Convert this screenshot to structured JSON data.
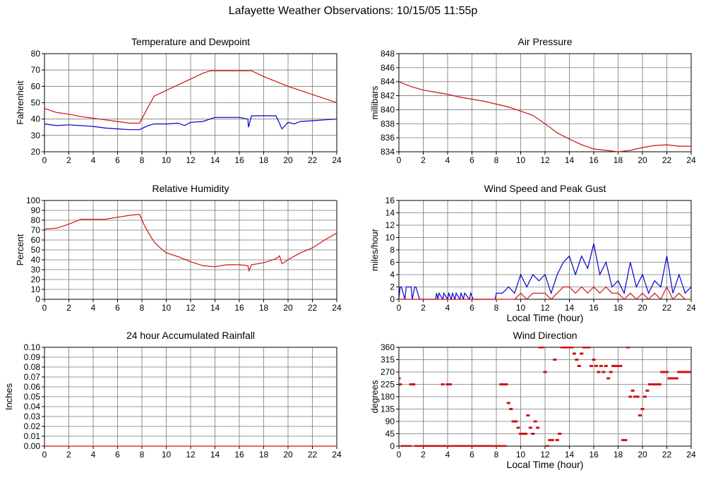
{
  "page": {
    "title": "Lafayette Weather Observations: 10/15/05 11:55p"
  },
  "colors": {
    "red": "#d01010",
    "blue": "#0000c8",
    "grid": "#000000",
    "axis": "#000000"
  },
  "chart_data": [
    {
      "id": "temp",
      "type": "line",
      "title": "Temperature and Dewpoint",
      "xlabel": "",
      "ylabel": "Fahrenheit",
      "xlim": [
        0,
        24
      ],
      "ylim": [
        20,
        80
      ],
      "xticks": [
        0,
        2,
        4,
        6,
        8,
        10,
        12,
        14,
        16,
        18,
        20,
        22,
        24
      ],
      "yticks": [
        20,
        30,
        40,
        50,
        60,
        70,
        80
      ],
      "grid": true,
      "series": [
        {
          "color": "#d01010",
          "x": [
            0,
            1,
            2,
            3,
            4,
            5,
            6,
            7,
            7.8,
            8.2,
            9,
            10,
            11,
            12,
            13,
            13.6,
            14,
            15,
            16,
            17,
            18,
            19,
            20,
            21,
            22,
            23,
            24
          ],
          "values": [
            46.5,
            44,
            43,
            41.5,
            40.5,
            39.5,
            38.5,
            37.5,
            37.5,
            43,
            54,
            57.5,
            61,
            64.5,
            68,
            69.5,
            69.5,
            69.5,
            69.5,
            69.5,
            66,
            63,
            60,
            57.5,
            55,
            52.5,
            50
          ]
        },
        {
          "color": "#0000c8",
          "x": [
            0,
            1,
            2,
            3,
            4,
            5,
            6,
            7,
            7.8,
            8.5,
            9,
            10,
            11,
            11.5,
            12,
            13,
            14,
            15,
            16,
            16.7,
            16.75,
            17,
            18,
            19,
            19.2,
            19.5,
            20,
            20.5,
            21,
            22,
            23,
            24
          ],
          "values": [
            37,
            36,
            36.5,
            36,
            35.5,
            34.5,
            34,
            33.5,
            33.5,
            36,
            37,
            37,
            37.5,
            36,
            38,
            38.5,
            41,
            41,
            41,
            40,
            35,
            42,
            42,
            42,
            39,
            34,
            38,
            37,
            38.5,
            39,
            39.5,
            40
          ]
        }
      ]
    },
    {
      "id": "pressure",
      "type": "line",
      "title": "Air Pressure",
      "xlabel": "",
      "ylabel": "millibars",
      "xlim": [
        0,
        24
      ],
      "ylim": [
        834,
        848
      ],
      "xticks": [
        0,
        2,
        4,
        6,
        8,
        10,
        12,
        14,
        16,
        18,
        20,
        22,
        24
      ],
      "yticks": [
        834,
        836,
        838,
        840,
        842,
        844,
        846,
        848
      ],
      "grid": true,
      "series": [
        {
          "color": "#d01010",
          "x": [
            0,
            1,
            2,
            3,
            4,
            5,
            6,
            7,
            8,
            9,
            10,
            11,
            12,
            13,
            14,
            15,
            16,
            17,
            18,
            19,
            20,
            21,
            22,
            23,
            24
          ],
          "values": [
            844,
            843.3,
            842.8,
            842.5,
            842.2,
            841.8,
            841.5,
            841.2,
            840.8,
            840.4,
            839.8,
            839.2,
            838,
            836.7,
            835.8,
            835,
            834.4,
            834.2,
            834,
            834.2,
            834.6,
            834.9,
            835,
            834.8,
            834.8
          ]
        }
      ]
    },
    {
      "id": "humidity",
      "type": "line",
      "title": "Relative Humidity",
      "xlabel": "",
      "ylabel": "Percent",
      "xlim": [
        0,
        24
      ],
      "ylim": [
        0,
        100
      ],
      "xticks": [
        0,
        2,
        4,
        6,
        8,
        10,
        12,
        14,
        16,
        18,
        20,
        22,
        24
      ],
      "yticks": [
        0,
        10,
        20,
        30,
        40,
        50,
        60,
        70,
        80,
        90,
        100
      ],
      "grid": true,
      "series": [
        {
          "color": "#d01010",
          "x": [
            0,
            1,
            2,
            3,
            4,
            5,
            6,
            7,
            7.8,
            8.2,
            8.6,
            9,
            9.5,
            10,
            11,
            12,
            13,
            14,
            15,
            16,
            16.7,
            16.8,
            17,
            18,
            19,
            19.3,
            19.5,
            20,
            21,
            22,
            23,
            24
          ],
          "values": [
            71,
            72,
            76,
            81,
            81,
            81,
            83,
            85,
            86,
            75,
            66,
            58,
            52,
            47,
            43,
            38,
            34,
            33,
            35,
            35,
            34,
            29,
            35,
            37,
            41,
            44,
            36,
            40,
            47,
            52,
            60,
            67
          ]
        }
      ]
    },
    {
      "id": "wind",
      "type": "line",
      "title": "Wind Speed and Peak Gust",
      "xlabel": "Local Time (hour)",
      "ylabel": "miles/hour",
      "xlim": [
        0,
        24
      ],
      "ylim": [
        0,
        16
      ],
      "xticks": [
        0,
        2,
        4,
        6,
        8,
        10,
        12,
        14,
        16,
        18,
        20,
        22,
        24
      ],
      "yticks": [
        0,
        2,
        4,
        6,
        8,
        10,
        12,
        14,
        16
      ],
      "grid": true,
      "series": [
        {
          "color": "#0000c8",
          "x": [
            0,
            0.1,
            0.2,
            0.5,
            0.6,
            1.0,
            1.1,
            1.3,
            1.4,
            1.7,
            1.8,
            3,
            3.1,
            3.2,
            3.3,
            3.6,
            3.7,
            4,
            4.1,
            4.3,
            4.4,
            4.6,
            4.7,
            5,
            5.1,
            5.3,
            5.4,
            5.8,
            5.9,
            6.1,
            6.2,
            7.9,
            8,
            8.5,
            9,
            9.5,
            10,
            10.5,
            11,
            11.5,
            12,
            12.5,
            13,
            13.5,
            14,
            14.5,
            15,
            15.5,
            16,
            16.5,
            17,
            17.5,
            18,
            18.5,
            19,
            19.5,
            20,
            20.5,
            21,
            21.5,
            22,
            22.5,
            23,
            23.5,
            24
          ],
          "values": [
            0,
            2,
            2,
            0,
            2,
            2,
            0,
            2,
            2,
            0,
            0,
            0,
            1,
            0,
            1,
            0,
            1,
            0,
            1,
            0,
            1,
            0,
            1,
            0,
            1,
            0,
            1,
            0,
            1,
            0,
            0,
            0,
            1,
            1,
            2,
            1,
            4,
            2,
            4,
            3,
            4,
            1,
            4,
            6,
            7,
            4,
            7,
            5,
            9,
            4,
            6,
            2,
            3,
            1,
            6,
            2,
            4,
            1,
            3,
            2,
            7,
            1,
            4,
            1,
            2
          ]
        },
        {
          "color": "#d01010",
          "x": [
            0,
            9.5,
            10,
            10.5,
            11,
            11.5,
            12,
            12.5,
            13,
            13.5,
            14,
            14.5,
            15,
            15.5,
            16,
            16.5,
            17,
            17.5,
            18,
            18.5,
            19,
            19.5,
            20,
            20.5,
            21,
            21.5,
            22,
            22.5,
            23,
            23.5,
            24
          ],
          "values": [
            0,
            0,
            1,
            0,
            1,
            1,
            1,
            0,
            1,
            2,
            2,
            1,
            2,
            1,
            2,
            1,
            2,
            1,
            1,
            0,
            1,
            0,
            1,
            0,
            1,
            0,
            2,
            0,
            1,
            0,
            0
          ]
        }
      ]
    },
    {
      "id": "rain",
      "type": "line",
      "title": "24 hour Accumulated Rainfall",
      "xlabel": "",
      "ylabel": "Inches",
      "xlim": [
        0,
        24
      ],
      "ylim": [
        0,
        0.1
      ],
      "xticks": [
        0,
        2,
        4,
        6,
        8,
        10,
        12,
        14,
        16,
        18,
        20,
        22,
        24
      ],
      "yticks": [
        0,
        0.01,
        0.02,
        0.03,
        0.04,
        0.05,
        0.06,
        0.07,
        0.08,
        0.09,
        0.1
      ],
      "ytick_labels": [
        "0.00",
        "0.01",
        "0.02",
        "0.03",
        "0.04",
        "0.05",
        "0.06",
        "0.07",
        "0.08",
        "0.09",
        "0.10"
      ],
      "grid": true,
      "series": [
        {
          "color": "#d01010",
          "x": [
            0,
            24
          ],
          "values": [
            0,
            0
          ]
        }
      ]
    },
    {
      "id": "direction",
      "type": "scatter",
      "title": "Wind Direction",
      "xlabel": "Local Time (hour)",
      "ylabel": "degrees",
      "xlim": [
        0,
        24
      ],
      "ylim": [
        0,
        360
      ],
      "xticks": [
        0,
        2,
        4,
        6,
        8,
        10,
        12,
        14,
        16,
        18,
        20,
        22,
        24
      ],
      "yticks": [
        0,
        45,
        90,
        135,
        180,
        225,
        270,
        315,
        360
      ],
      "grid": true,
      "series": [
        {
          "color": "#d01010",
          "x": [
            0,
            0.1,
            0.3,
            0.6,
            0.9,
            1.0,
            1.2,
            1.4,
            1.6,
            1.8,
            2.0,
            2.2,
            2.4,
            2.6,
            2.8,
            3.0,
            3.2,
            3.4,
            3.6,
            3.8,
            4.0,
            4.2,
            4.4,
            4.6,
            4.8,
            5.0,
            5.2,
            5.4,
            5.6,
            5.8,
            6.0,
            6.2,
            6.4,
            6.6,
            6.8,
            7.0,
            7.2,
            7.4,
            7.6,
            7.8,
            8.0,
            8.2,
            8.4,
            8.6,
            8.8,
            9.0,
            9.2,
            9.4,
            9.6,
            9.8,
            10.0,
            10.2,
            10.4,
            10.6,
            10.8,
            11.0,
            11.2,
            11.4,
            11.6,
            11.8,
            12.0,
            12.2,
            12.4,
            12.6,
            12.8,
            13.0,
            13.2,
            13.4,
            13.6,
            13.8,
            14.0,
            14.2,
            14.4,
            14.6,
            14.8,
            15.0,
            15.2,
            15.4,
            15.6,
            15.8,
            16.0,
            16.2,
            16.4,
            16.6,
            16.8,
            17.0,
            17.2,
            17.4,
            17.6,
            17.8,
            18.0,
            18.2,
            18.4,
            18.6,
            18.8,
            19.0,
            19.2,
            19.4,
            19.6,
            19.8,
            20.0,
            20.2,
            20.4,
            20.6,
            20.8,
            21.0,
            21.2,
            21.4,
            21.6,
            21.8,
            22.0,
            22.2,
            22.4,
            22.6,
            22.8,
            23.0,
            23.2,
            23.4,
            23.6,
            23.8,
            24.0,
            1.5,
            2.5,
            3.6,
            4.2,
            5.6,
            8.2,
            8.5,
            8.7
          ],
          "values": [
            247,
            225,
            0,
            0,
            0,
            225,
            225,
            0,
            0,
            0,
            0,
            0,
            0,
            0,
            0,
            0,
            0,
            0,
            225,
            0,
            225,
            225,
            0,
            0,
            0,
            0,
            0,
            0,
            0,
            0,
            0,
            0,
            0,
            0,
            0,
            0,
            0,
            0,
            0,
            0,
            0,
            0,
            225,
            225,
            225,
            157,
            135,
            90,
            90,
            67,
            45,
            45,
            45,
            112,
            67,
            45,
            90,
            67,
            360,
            360,
            270,
            0,
            22,
            22,
            315,
            22,
            45,
            360,
            360,
            360,
            360,
            360,
            337,
            315,
            292,
            337,
            360,
            360,
            360,
            292,
            315,
            292,
            270,
            292,
            270,
            292,
            247,
            270,
            292,
            292,
            292,
            292,
            22,
            22,
            360,
            180,
            202,
            180,
            180,
            112,
            135,
            180,
            202,
            225,
            225,
            225,
            225,
            225,
            270,
            270,
            270,
            247,
            247,
            247,
            247,
            270,
            270,
            270,
            270,
            270,
            270,
            0,
            0,
            0,
            0,
            0,
            0,
            0,
            0
          ],
          "marker": "square"
        }
      ]
    }
  ]
}
